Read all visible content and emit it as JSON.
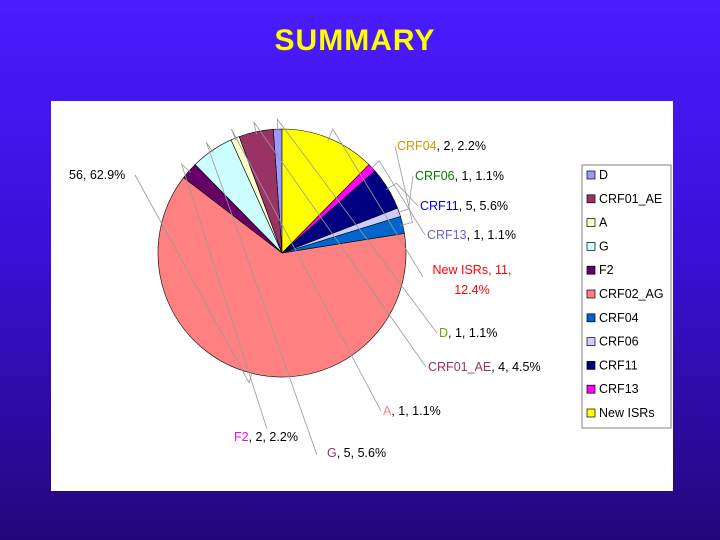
{
  "slide": {
    "title": "SUMMARY"
  },
  "chart_data": {
    "type": "pie",
    "start_angle_deg": 90,
    "direction": "counterclockwise",
    "slices": [
      {
        "name": "D",
        "value": 1,
        "percent": "1.1%",
        "color": "#9999ff",
        "name_color": "#66aa00",
        "label": {
          "name": "D",
          "rest": ", 1, 1.1%"
        }
      },
      {
        "name": "CRF01_AE",
        "value": 4,
        "percent": "4.5%",
        "color": "#993366",
        "name_color": "#993366",
        "label": {
          "name": "CRF01_AE",
          "rest": ", 4, 4.5%"
        }
      },
      {
        "name": "A",
        "value": 1,
        "percent": "1.1%",
        "color": "#ffffcc",
        "name_color": "#ff8080",
        "label": {
          "name": "A",
          "rest": ", 1, 1.1%"
        }
      },
      {
        "name": "G",
        "value": 5,
        "percent": "5.6%",
        "color": "#ccffff",
        "name_color": "#993366",
        "label": {
          "name": "G",
          "rest": ", 5, 5.6%"
        }
      },
      {
        "name": "F2",
        "value": 2,
        "percent": "2.2%",
        "color": "#660066",
        "name_color": "#ff00ff",
        "label": {
          "name": "F2",
          "rest": ", 2, 2.2%"
        }
      },
      {
        "name": "CRF02_AG",
        "value": 56,
        "percent": "62.9%",
        "color": "#ff8080",
        "name_color": "#000000",
        "label": {
          "name": "",
          "rest": "56, 62.9%"
        }
      },
      {
        "name": "CRF04",
        "value": 2,
        "percent": "2.2%",
        "color": "#0066cc",
        "name_color": "#cc9900",
        "label": {
          "name": "CRF04",
          "rest": ", 2, 2.2%"
        }
      },
      {
        "name": "CRF06",
        "value": 1,
        "percent": "1.1%",
        "color": "#ccccff",
        "name_color": "#008000",
        "label": {
          "name": "CRF06",
          "rest": ", 1, 1.1%"
        }
      },
      {
        "name": "CRF11",
        "value": 5,
        "percent": "5.6%",
        "color": "#000080",
        "name_color": "#0000ff",
        "label": {
          "name": "CRF11",
          "rest": ", 5, 5.6%"
        }
      },
      {
        "name": "CRF13",
        "value": 1,
        "percent": "1.1%",
        "color": "#ff00ff",
        "name_color": "#6666cc",
        "label": {
          "name": "CRF13",
          "rest": ", 1, 1.1%"
        }
      },
      {
        "name": "New ISRs",
        "value": 11,
        "percent": "12.4%",
        "color": "#ffff00",
        "name_color": "#ff0000",
        "label": {
          "name": "New ISRs",
          "rest": ", 11,",
          "line2": "12.4%"
        }
      }
    ],
    "legend": {
      "position": "right",
      "entries": [
        "D",
        "CRF01_AE",
        "A",
        "G",
        "F2",
        "CRF02_AG",
        "CRF04",
        "CRF06",
        "CRF11",
        "CRF13",
        "New ISRs"
      ]
    }
  }
}
